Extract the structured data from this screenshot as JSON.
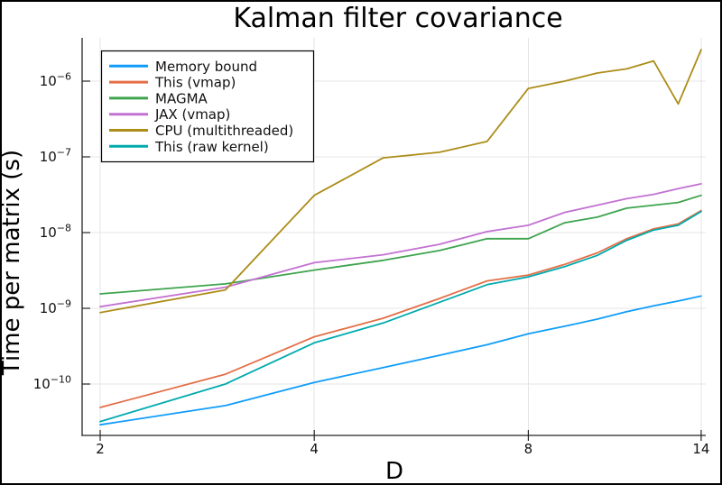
{
  "chart_data": {
    "type": "line",
    "title": "Kalman filter covariance",
    "xlabel": "D",
    "ylabel": "Time per matrix (s)",
    "x_scale": "log",
    "y_scale": "log",
    "grid": true,
    "legend_position": "top-left",
    "x_ticks": [
      2,
      4,
      8,
      14
    ],
    "y_tick_base": "10",
    "y_tick_exponents": [
      -6,
      -7,
      -8,
      -9,
      -10
    ],
    "xlim": [
      1.89,
      14.24
    ],
    "ylim": [
      2.1e-11,
      3.7e-06
    ],
    "x": [
      2,
      3,
      4,
      5,
      6,
      7,
      8,
      9,
      10,
      11,
      12,
      13,
      14
    ],
    "series": [
      {
        "name": "Memory bound",
        "color": "#109dfa",
        "values": [
          2.9e-11,
          5.2e-11,
          1.05e-10,
          1.65e-10,
          2.4e-10,
          3.3e-10,
          4.6e-10,
          5.8e-10,
          7.2e-10,
          9e-10,
          1.08e-09,
          1.25e-09,
          1.45e-09
        ]
      },
      {
        "name": "This (vmap)",
        "color": "#e36f47",
        "values": [
          4.9e-11,
          1.35e-10,
          4.2e-10,
          7.4e-10,
          1.35e-09,
          2.3e-09,
          2.75e-09,
          3.8e-09,
          5.4e-09,
          8.3e-09,
          1.12e-08,
          1.3e-08,
          1.95e-08
        ]
      },
      {
        "name": "MAGMA",
        "color": "#3ea44e",
        "values": [
          1.55e-09,
          2.1e-09,
          3.2e-09,
          4.3e-09,
          5.8e-09,
          8.3e-09,
          8.3e-09,
          1.35e-08,
          1.6e-08,
          2.1e-08,
          2.3e-08,
          2.5e-08,
          3.1e-08
        ]
      },
      {
        "name": "JAX (vmap)",
        "color": "#c371d2",
        "values": [
          1.05e-09,
          1.9e-09,
          4e-09,
          5.1e-09,
          7e-09,
          1.03e-08,
          1.25e-08,
          1.85e-08,
          2.3e-08,
          2.8e-08,
          3.2e-08,
          3.8e-08,
          4.4e-08
        ]
      },
      {
        "name": "CPU (multithreaded)",
        "color": "#ac8d18",
        "values": [
          8.8e-10,
          1.75e-09,
          3.1e-08,
          9.7e-08,
          1.15e-07,
          1.6e-07,
          8e-07,
          1e-06,
          1.28e-06,
          1.45e-06,
          1.85e-06,
          5e-07,
          2.6e-06
        ]
      },
      {
        "name": "This (raw kernel)",
        "color": "#00aaae",
        "values": [
          3.2e-11,
          1e-10,
          3.5e-10,
          6.4e-10,
          1.2e-09,
          2.05e-09,
          2.6e-09,
          3.55e-09,
          5e-09,
          7.9e-09,
          1.08e-08,
          1.25e-08,
          1.9e-08
        ]
      }
    ]
  }
}
